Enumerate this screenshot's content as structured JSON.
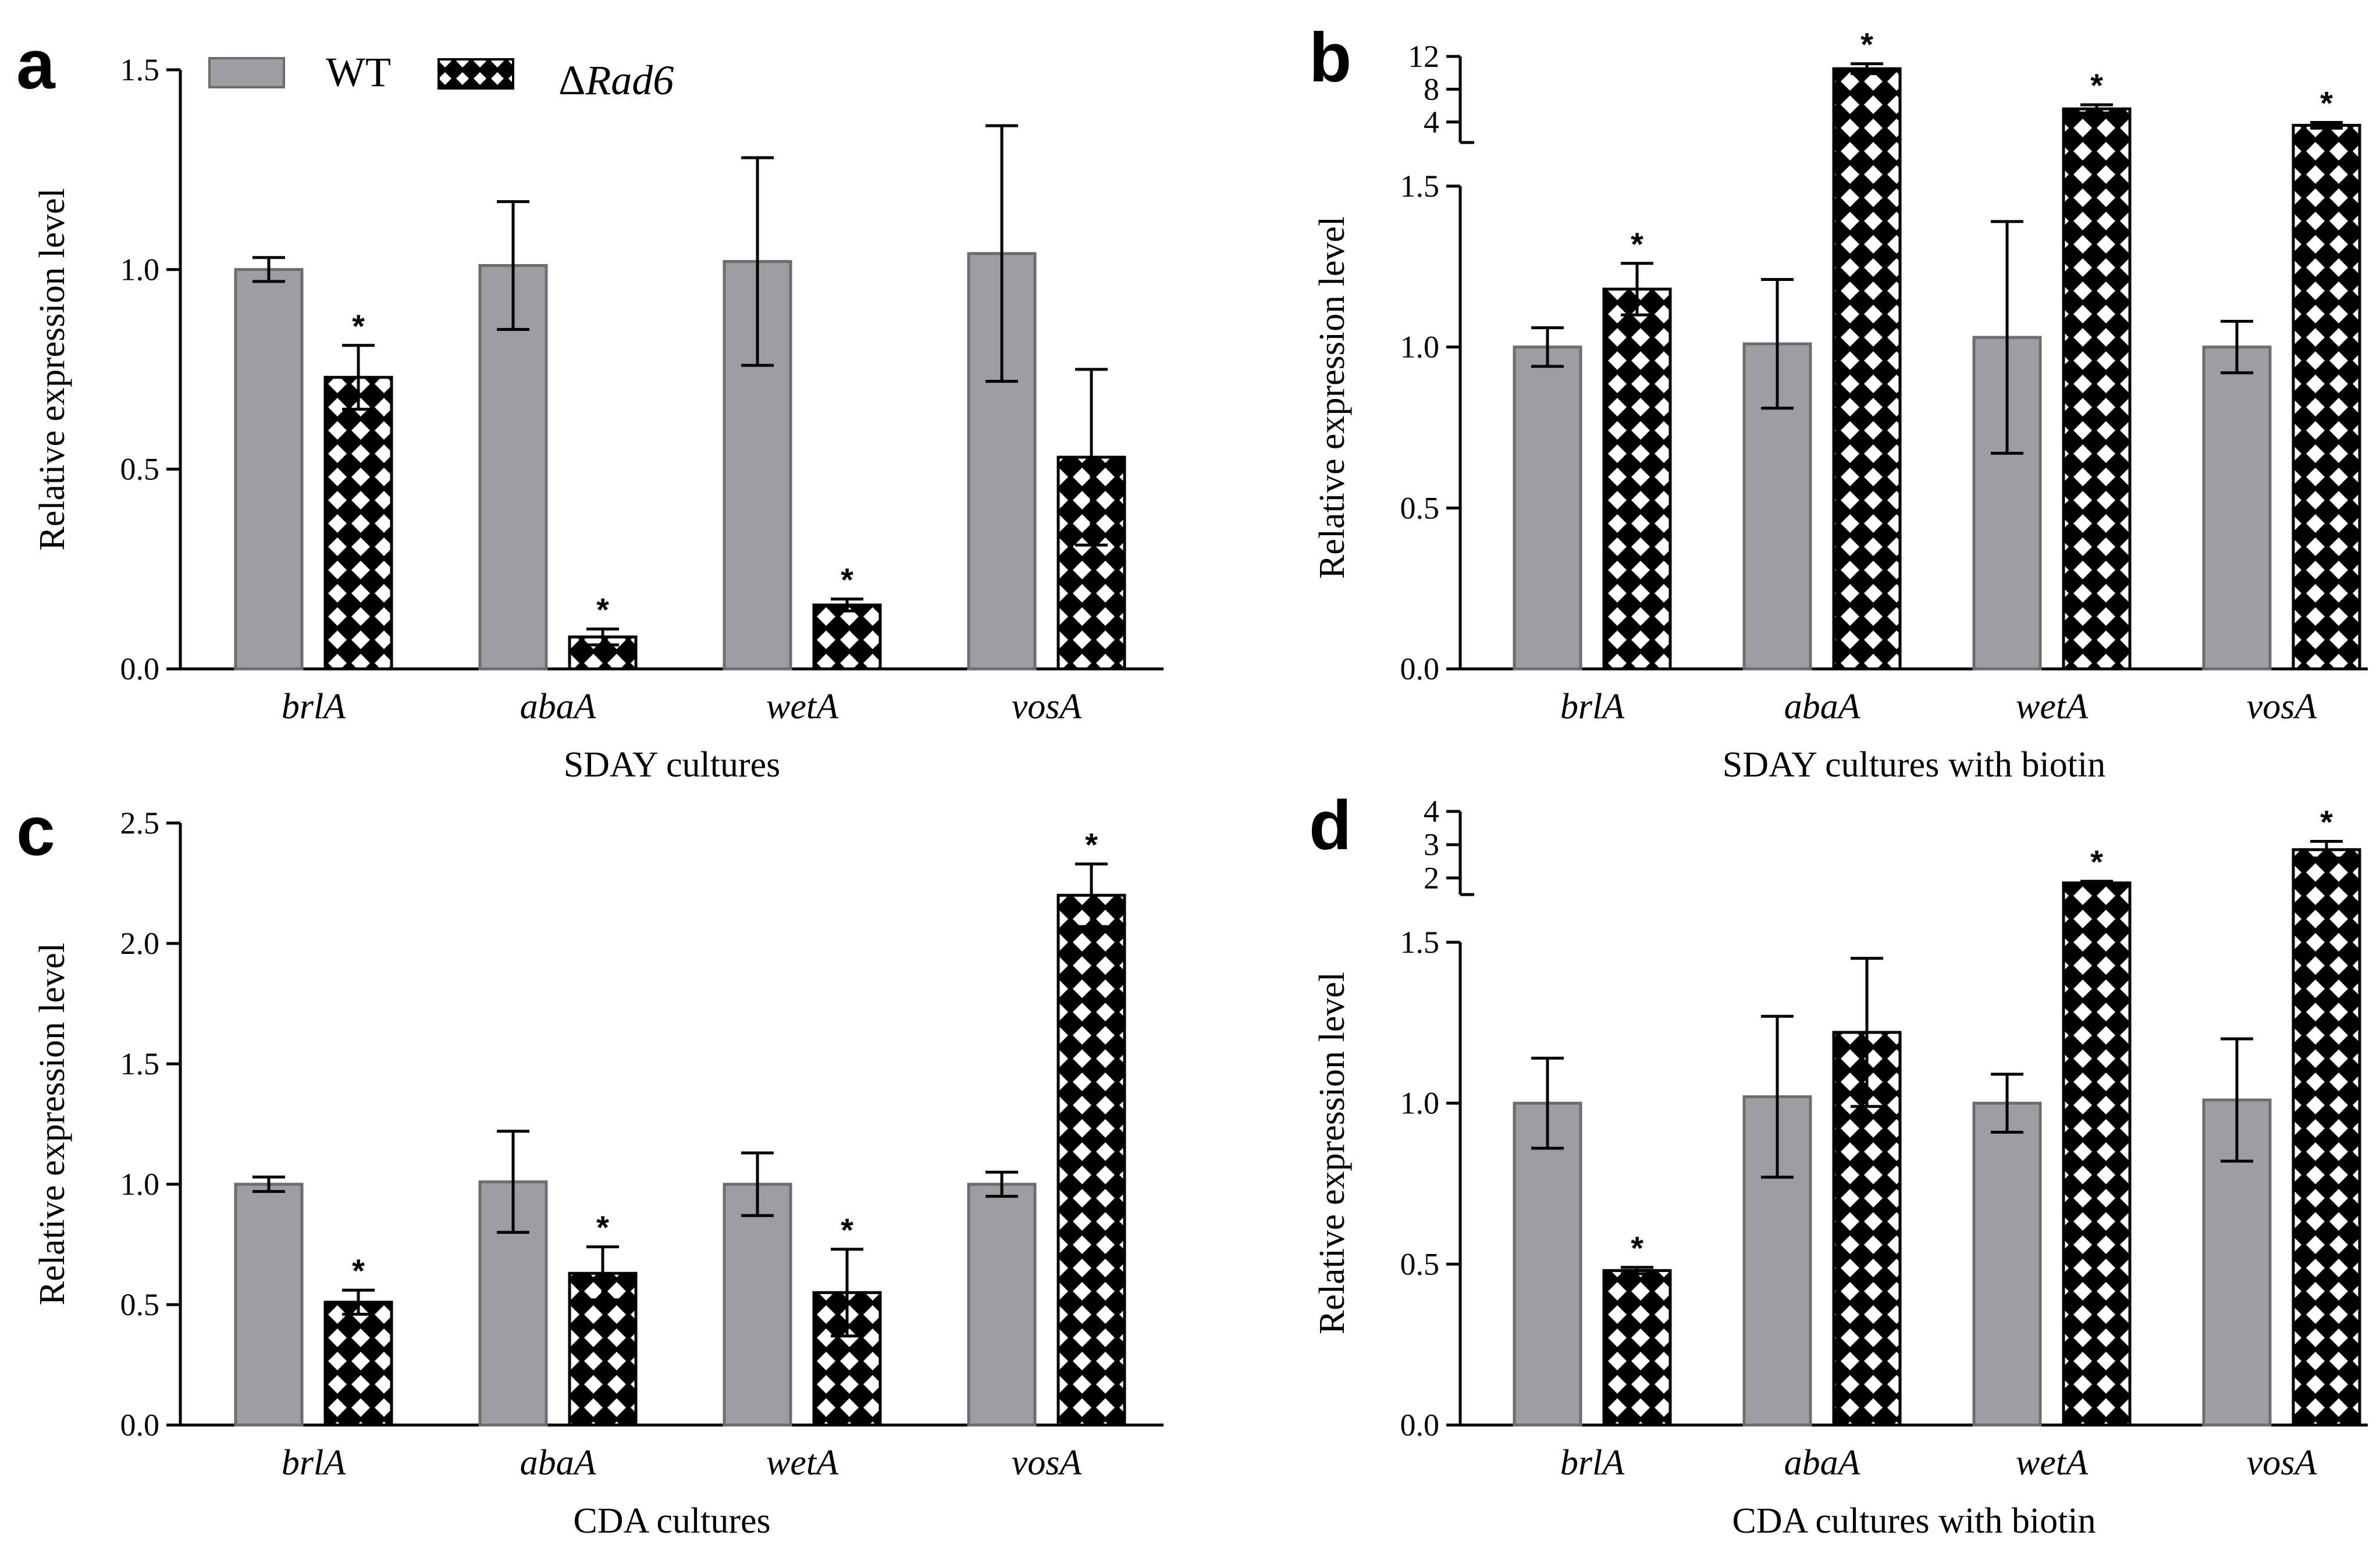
{
  "legend": {
    "wt_label": "WT",
    "rad6_prefix": "Δ",
    "rad6_label": "Rad6"
  },
  "colors": {
    "wt_fill": "#9e9ea2",
    "wt_stroke": "#6d6d70",
    "hatch_fill": "#000000",
    "axis": "#000000"
  },
  "chart_data": [
    {
      "panel": "a",
      "type": "bar",
      "xlabel": "SDAY cultures",
      "ylabel": "Relative expression level",
      "categories": [
        "brlA",
        "abaA",
        "wetA",
        "vosA"
      ],
      "ylim": [
        0,
        1.5
      ],
      "yticks": [
        "0.0",
        "0.5",
        "1.0",
        "1.5"
      ],
      "series": [
        {
          "name": "WT",
          "values": [
            1.0,
            1.01,
            1.02,
            1.04
          ],
          "errors": [
            0.03,
            0.16,
            0.26,
            0.32
          ],
          "significant": [
            false,
            false,
            false,
            false
          ]
        },
        {
          "name": "ΔRad6",
          "values": [
            0.73,
            0.08,
            0.16,
            0.53
          ],
          "errors": [
            0.08,
            0.02,
            0.015,
            0.22
          ],
          "significant": [
            true,
            true,
            true,
            false
          ]
        }
      ]
    },
    {
      "panel": "b",
      "type": "bar",
      "xlabel": "SDAY cultures with biotin",
      "ylabel": "Relative expression level",
      "categories": [
        "brlA",
        "abaA",
        "wetA",
        "vosA"
      ],
      "ylim": [
        0,
        12
      ],
      "axis_break": {
        "lower_max": 1.5,
        "upper_min": 1.5,
        "upper_max": 12
      },
      "yticks": [
        "0.0",
        "0.5",
        "1.0",
        "1.5",
        "4",
        "8",
        "12"
      ],
      "series": [
        {
          "name": "WT",
          "values": [
            1.0,
            1.01,
            1.03,
            1.0
          ],
          "errors": [
            0.06,
            0.2,
            0.36,
            0.08
          ],
          "significant": [
            false,
            false,
            false,
            false
          ]
        },
        {
          "name": "ΔRad6",
          "values": [
            1.18,
            10.5,
            5.6,
            3.6
          ],
          "errors": [
            0.08,
            0.6,
            0.5,
            0.35
          ],
          "significant": [
            true,
            true,
            true,
            true
          ]
        }
      ]
    },
    {
      "panel": "c",
      "type": "bar",
      "xlabel": "CDA cultures",
      "ylabel": "Relative expression level",
      "categories": [
        "brlA",
        "abaA",
        "wetA",
        "vosA"
      ],
      "ylim": [
        0,
        2.5
      ],
      "yticks": [
        "0.0",
        "0.5",
        "1.0",
        "1.5",
        "2.0",
        "2.5"
      ],
      "series": [
        {
          "name": "WT",
          "values": [
            1.0,
            1.01,
            1.0,
            1.0
          ],
          "errors": [
            0.03,
            0.21,
            0.13,
            0.05
          ],
          "significant": [
            false,
            false,
            false,
            false
          ]
        },
        {
          "name": "ΔRad6",
          "values": [
            0.51,
            0.63,
            0.55,
            2.2
          ],
          "errors": [
            0.05,
            0.11,
            0.18,
            0.13
          ],
          "significant": [
            true,
            true,
            true,
            true
          ]
        }
      ]
    },
    {
      "panel": "d",
      "type": "bar",
      "xlabel": "CDA cultures with biotin",
      "ylabel": "Relative expression level",
      "categories": [
        "brlA",
        "abaA",
        "wetA",
        "vosA"
      ],
      "ylim": [
        0,
        4
      ],
      "axis_break": {
        "lower_max": 1.5,
        "upper_min": 1.5,
        "upper_max": 4
      },
      "yticks": [
        "0.0",
        "0.5",
        "1.0",
        "1.5",
        "2",
        "3",
        "4"
      ],
      "series": [
        {
          "name": "WT",
          "values": [
            1.0,
            1.02,
            1.0,
            1.01
          ],
          "errors": [
            0.14,
            0.25,
            0.09,
            0.19
          ],
          "significant": [
            false,
            false,
            false,
            false
          ]
        },
        {
          "name": "ΔRad6",
          "values": [
            0.48,
            1.22,
            1.85,
            2.85
          ],
          "errors": [
            0.01,
            0.23,
            0.05,
            0.25
          ],
          "significant": [
            true,
            false,
            true,
            true
          ]
        }
      ]
    }
  ]
}
